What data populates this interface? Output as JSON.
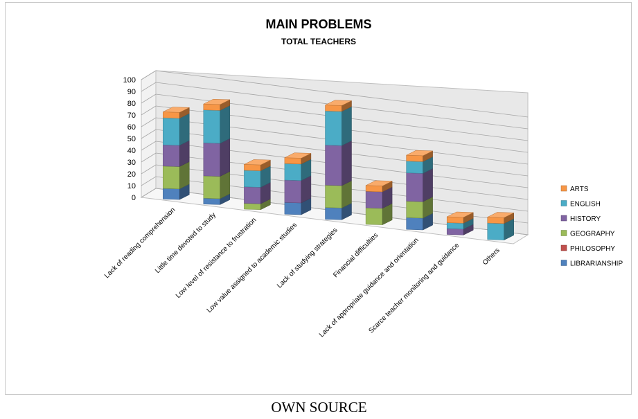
{
  "caption": "OWN SOURCE",
  "chart_data": {
    "type": "bar",
    "stacked": true,
    "three_d": true,
    "title": "MAIN PROBLEMS",
    "subtitle": "TOTAL TEACHERS",
    "ylim": [
      0,
      100
    ],
    "yticks": [
      0,
      10,
      20,
      30,
      40,
      50,
      60,
      70,
      80,
      90,
      100
    ],
    "grid": true,
    "legend_position": "right",
    "categories": [
      "Lack of reading comprehension",
      "Little time devoted to study",
      "Low level of resistance to frustration",
      "Low value assigned to academic studies",
      "Lack of studying strategies",
      "Financial difficulties",
      "Lack of appropriate guidance and orientation",
      "Scarce teacher monitoring and guidance",
      "Others"
    ],
    "series": [
      {
        "name": "LIBRARIANSHIP",
        "color": "#4f81bd",
        "values": [
          9,
          5,
          0,
          10,
          10,
          0,
          10,
          0,
          0
        ]
      },
      {
        "name": "PHILOSOPHY",
        "color": "#c0504d",
        "values": [
          0,
          0,
          0,
          0,
          0,
          0,
          0,
          0,
          0
        ]
      },
      {
        "name": "GEOGRAPHY",
        "color": "#9bbb59",
        "values": [
          19,
          19,
          5,
          0,
          19,
          14,
          14,
          0,
          0
        ]
      },
      {
        "name": "HISTORY",
        "color": "#8064a2",
        "values": [
          18,
          28,
          14,
          19,
          34,
          14,
          24,
          5,
          0
        ]
      },
      {
        "name": "ENGLISH",
        "color": "#4bacc6",
        "values": [
          23,
          28,
          14,
          14,
          29,
          0,
          10,
          5,
          14
        ]
      },
      {
        "name": "ARTS",
        "color": "#f79646",
        "values": [
          5,
          5,
          5,
          5,
          5,
          5,
          5,
          5,
          5
        ]
      }
    ]
  }
}
